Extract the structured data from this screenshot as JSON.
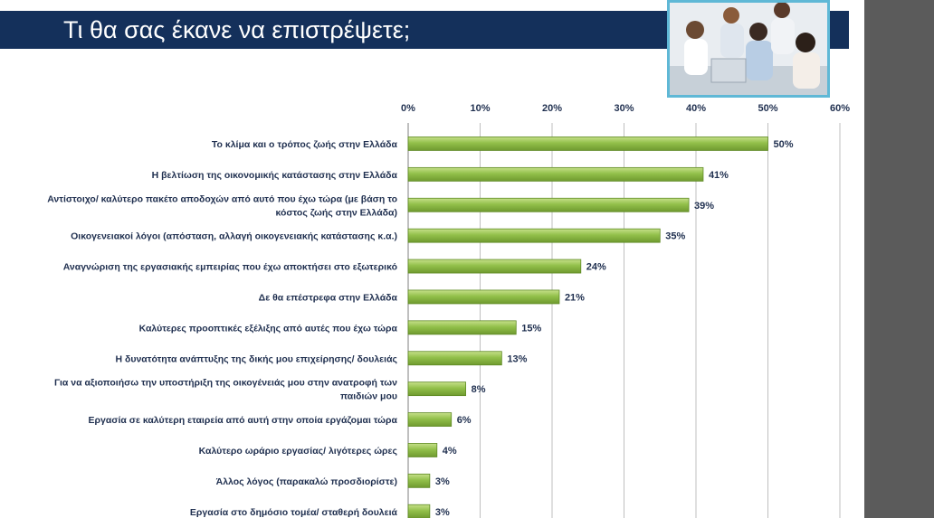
{
  "slide": {
    "title": "Τι θα σας έκανε να επιστρέψετε;"
  },
  "colors": {
    "title_bar": "#14305b",
    "bar_fill": "#92c04a",
    "bar_stroke": "#5f8a24",
    "gridline": "#bfbfbf",
    "right_pane": "#5b5b5b",
    "photo_border": "#5fb8d6"
  },
  "chart_data": {
    "type": "bar",
    "orientation": "horizontal",
    "title": "",
    "xlabel": "",
    "ylabel": "",
    "xlim": [
      0,
      60
    ],
    "ticks": [
      "0%",
      "10%",
      "20%",
      "30%",
      "40%",
      "50%",
      "60%"
    ],
    "grid": true,
    "categories": [
      [
        "Το κλίμα και ο τρόπος ζωής στην Ελλάδα"
      ],
      [
        "Η βελτίωση της οικονομικής κατάστασης στην Ελλάδα"
      ],
      [
        "Αντίστοιχο/ καλύτερο πακέτο αποδοχών από αυτό που έχω τώρα (με βάση το",
        "κόστος ζωής στην Ελλάδα)"
      ],
      [
        "Οικογενειακοί λόγοι (απόσταση, αλλαγή οικογενειακής κατάστασης κ.α.)"
      ],
      [
        "Αναγνώριση της εργασιακής εμπειρίας που έχω αποκτήσει στο εξωτερικό"
      ],
      [
        "Δε θα επέστρεφα στην Ελλάδα"
      ],
      [
        "Καλύτερες προοπτικές εξέλιξης από αυτές που έχω τώρα"
      ],
      [
        "Η δυνατότητα ανάπτυξης της δικής μου επιχείρησης/ δουλειάς"
      ],
      [
        "Για να αξιοποιήσω την υποστήριξη της οικογένειάς μου στην ανατροφή των",
        "παιδιών μου"
      ],
      [
        "Εργασία σε καλύτερη εταιρεία από αυτή στην οποία εργάζομαι τώρα"
      ],
      [
        "Καλύτερο ωράριο εργασίας/ λιγότερες ώρες"
      ],
      [
        "Άλλος λόγος (παρακαλώ προσδιορίστε)"
      ],
      [
        "Εργασία στο δημόσιο τομέα/ σταθερή δουλειά"
      ]
    ],
    "values": [
      50,
      41,
      39,
      35,
      24,
      21,
      15,
      13,
      8,
      6,
      4,
      3,
      3
    ],
    "value_labels": [
      "50%",
      "41%",
      "39%",
      "35%",
      "24%",
      "21%",
      "15%",
      "13%",
      "8%",
      "6%",
      "4%",
      "3%",
      "3%"
    ]
  }
}
